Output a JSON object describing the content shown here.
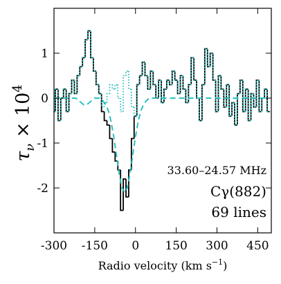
{
  "chart_data": {
    "type": "step",
    "xlabel": {
      "main": "Radio velocity (km s",
      "sup": "−1",
      "close": ")"
    },
    "ylabel": {
      "main": "τ",
      "sub": "ν",
      "times": " × 10",
      "sup": "4"
    },
    "annotations": [
      "33.60–24.57 MHz",
      "Cγ(882)",
      "69 lines"
    ],
    "x": [
      -300,
      -290,
      -280,
      -270,
      -260,
      -250,
      -240,
      -230,
      -220,
      -210,
      -200,
      -190,
      -180,
      -170,
      -160,
      -150,
      -140,
      -130,
      -120,
      -110,
      -100,
      -90,
      -80,
      -70,
      -60,
      -50,
      -40,
      -30,
      -20,
      -10,
      0,
      10,
      20,
      30,
      40,
      50,
      60,
      70,
      80,
      90,
      100,
      110,
      120,
      130,
      140,
      150,
      160,
      170,
      180,
      190,
      200,
      210,
      220,
      230,
      240,
      250,
      260,
      270,
      280,
      290,
      300,
      310,
      320,
      330,
      340,
      350,
      360,
      370,
      380,
      390,
      400,
      410,
      420,
      430,
      440,
      450,
      460,
      470,
      480,
      490
    ],
    "series": [
      {
        "style": "solid",
        "color": "#000000",
        "values": [
          -0.3,
          0.2,
          -0.5,
          0.0,
          0.2,
          -0.3,
          0.1,
          0.4,
          0.1,
          0.5,
          0.7,
          0.9,
          1.3,
          1.5,
          0.9,
          0.6,
          0.3,
          0.1,
          -0.3,
          -0.5,
          -0.6,
          -0.9,
          -1.2,
          -1.4,
          -1.6,
          -2.5,
          -1.8,
          -2.2,
          -1.6,
          -0.9,
          -0.4,
          0.3,
          0.5,
          0.8,
          0.5,
          0.2,
          0.6,
          0.3,
          0.0,
          0.4,
          -0.1,
          0.2,
          0.4,
          0.3,
          0.6,
          0.4,
          0.1,
          0.5,
          0.2,
          -0.1,
          0.3,
          0.9,
          0.4,
          0.0,
          -0.5,
          0.3,
          1.1,
          0.7,
          1.0,
          0.4,
          -0.3,
          0.5,
          0.2,
          -0.2,
          0.3,
          -0.4,
          -0.1,
          -0.6,
          0.1,
          0.4,
          -0.3,
          0.2,
          -0.5,
          0.1,
          -0.2,
          0.4,
          -0.3,
          0.0,
          0.2,
          -0.3
        ]
      },
      {
        "style": "dotted",
        "color": "#2bbfbf",
        "values": [
          -0.3,
          0.2,
          -0.5,
          0.0,
          0.2,
          -0.3,
          0.1,
          0.4,
          0.1,
          0.5,
          0.7,
          0.9,
          1.3,
          1.5,
          0.9,
          0.6,
          0.3,
          0.1,
          -0.2,
          -0.1,
          0.1,
          0.3,
          0.2,
          0.3,
          0.0,
          -0.3,
          0.5,
          0.6,
          0.2,
          -0.2,
          -0.4,
          0.3,
          0.5,
          0.8,
          0.5,
          0.2,
          0.6,
          0.3,
          0.0,
          0.4,
          -0.1,
          0.2,
          0.4,
          0.3,
          0.6,
          0.4,
          0.1,
          0.5,
          0.2,
          -0.1,
          0.3,
          0.9,
          0.4,
          0.0,
          -0.5,
          0.3,
          1.1,
          0.7,
          1.0,
          0.4,
          -0.3,
          0.5,
          0.2,
          -0.2,
          0.3,
          -0.4,
          -0.1,
          -0.6,
          0.1,
          0.4,
          -0.3,
          0.2,
          -0.5,
          0.1,
          -0.2,
          0.4,
          -0.3,
          0.0,
          0.2,
          -0.3
        ]
      },
      {
        "style": "dashed",
        "color": "#2bbfbf",
        "values": [
          0,
          0,
          0,
          0,
          0,
          0,
          0,
          0,
          0,
          -0.05,
          -0.1,
          -0.15,
          -0.15,
          -0.1,
          -0.05,
          0,
          0,
          0,
          -0.06,
          -0.14,
          -0.28,
          -0.52,
          -0.86,
          -1.27,
          -1.68,
          -1.99,
          -2.1,
          -1.99,
          -1.68,
          -1.27,
          -0.86,
          -0.52,
          -0.28,
          -0.14,
          -0.06,
          0,
          0,
          0,
          0,
          0,
          0,
          0,
          0,
          0,
          0,
          0,
          0,
          0,
          0,
          0,
          0,
          0,
          0,
          0,
          0,
          0,
          0,
          0,
          0,
          0,
          0,
          0,
          0,
          0,
          0,
          0,
          0,
          0,
          0,
          0,
          0,
          0,
          0,
          0,
          0,
          0,
          0,
          0,
          0,
          0
        ]
      }
    ],
    "xlim": [
      -300,
      500
    ],
    "ylim": [
      -3,
      2
    ],
    "xticks": [
      -300,
      -150,
      0,
      150,
      300,
      450
    ],
    "yticks": [
      -2,
      -1,
      0,
      1
    ]
  }
}
